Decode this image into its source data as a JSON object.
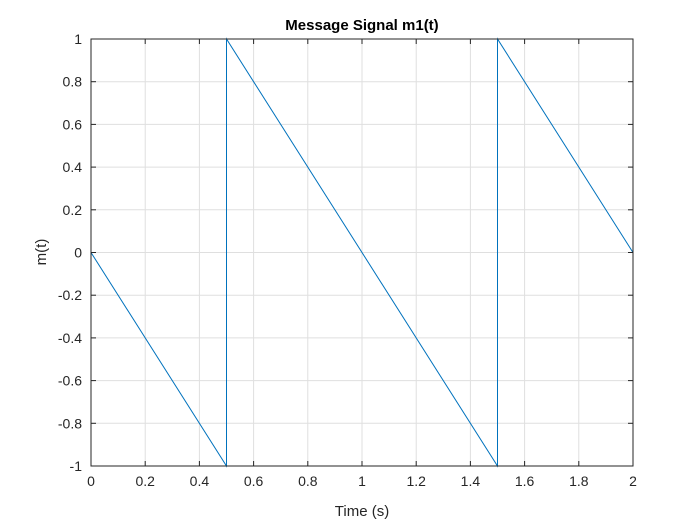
{
  "chart_data": {
    "type": "line",
    "title": "Message Signal m1(t)",
    "xlabel": "Time (s)",
    "ylabel": "m(t)",
    "xlim": [
      0,
      2
    ],
    "ylim": [
      -1,
      1
    ],
    "grid": true,
    "xticks": [
      0,
      0.2,
      0.4,
      0.6,
      0.8,
      1,
      1.2,
      1.4,
      1.6,
      1.8,
      2
    ],
    "xtick_labels": [
      "0",
      "0.2",
      "0.4",
      "0.6",
      "0.8",
      "1",
      "1.2",
      "1.4",
      "1.6",
      "1.8",
      "2"
    ],
    "yticks": [
      -1,
      -0.8,
      -0.6,
      -0.4,
      -0.2,
      0,
      0.2,
      0.4,
      0.6,
      0.8,
      1
    ],
    "ytick_labels": [
      "-1",
      "-0.8",
      "-0.6",
      "-0.4",
      "-0.2",
      "0",
      "0.2",
      "0.4",
      "0.6",
      "0.8",
      "1"
    ],
    "series": [
      {
        "color": "#0072bd",
        "x": [
          0,
          0.5,
          0.5,
          1.5,
          1.5,
          2
        ],
        "y": [
          0,
          -1,
          1,
          -1,
          1,
          0
        ]
      }
    ]
  }
}
